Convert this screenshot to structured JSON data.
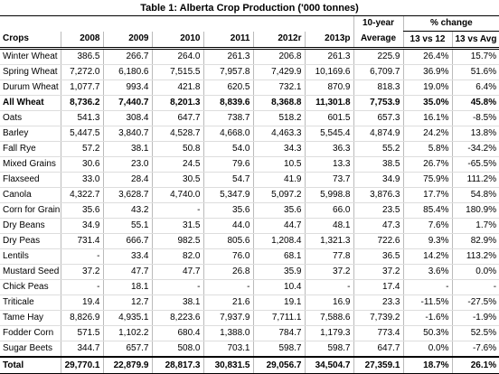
{
  "title": "Table 1:  Alberta Crop Production ('000 tonnes)",
  "header_top": {
    "average": "10-year",
    "percent_change": "% change"
  },
  "columns": [
    "Crops",
    "2008",
    "2009",
    "2010",
    "2011",
    "2012r",
    "2013p",
    "Average",
    "13 vs 12",
    "13 vs Avg"
  ],
  "rows": [
    [
      "Winter Wheat",
      "386.5",
      "266.7",
      "264.0",
      "261.3",
      "206.8",
      "261.3",
      "225.9",
      "26.4%",
      "15.7%"
    ],
    [
      "Spring Wheat",
      "7,272.0",
      "6,180.6",
      "7,515.5",
      "7,957.8",
      "7,429.9",
      "10,169.6",
      "6,709.7",
      "36.9%",
      "51.6%"
    ],
    [
      "Durum Wheat",
      "1,077.7",
      "993.4",
      "421.8",
      "620.5",
      "732.1",
      "870.9",
      "818.3",
      "19.0%",
      "6.4%"
    ],
    [
      "All Wheat",
      "8,736.2",
      "7,440.7",
      "8,201.3",
      "8,839.6",
      "8,368.8",
      "11,301.8",
      "7,753.9",
      "35.0%",
      "45.8%"
    ],
    [
      "Oats",
      "541.3",
      "308.4",
      "647.7",
      "738.7",
      "518.2",
      "601.5",
      "657.3",
      "16.1%",
      "-8.5%"
    ],
    [
      "Barley",
      "5,447.5",
      "3,840.7",
      "4,528.7",
      "4,668.0",
      "4,463.3",
      "5,545.4",
      "4,874.9",
      "24.2%",
      "13.8%"
    ],
    [
      "Fall Rye",
      "57.2",
      "38.1",
      "50.8",
      "54.0",
      "34.3",
      "36.3",
      "55.2",
      "5.8%",
      "-34.2%"
    ],
    [
      "Mixed Grains",
      "30.6",
      "23.0",
      "24.5",
      "79.6",
      "10.5",
      "13.3",
      "38.5",
      "26.7%",
      "-65.5%"
    ],
    [
      "Flaxseed",
      "33.0",
      "28.4",
      "30.5",
      "54.7",
      "41.9",
      "73.7",
      "34.9",
      "75.9%",
      "111.2%"
    ],
    [
      "Canola",
      "4,322.7",
      "3,628.7",
      "4,740.0",
      "5,347.9",
      "5,097.2",
      "5,998.8",
      "3,876.3",
      "17.7%",
      "54.8%"
    ],
    [
      "Corn for Grain",
      "35.6",
      "43.2",
      "-",
      "35.6",
      "35.6",
      "66.0",
      "23.5",
      "85.4%",
      "180.9%"
    ],
    [
      "Dry Beans",
      "34.9",
      "55.1",
      "31.5",
      "44.0",
      "44.7",
      "48.1",
      "47.3",
      "7.6%",
      "1.7%"
    ],
    [
      "Dry Peas",
      "731.4",
      "666.7",
      "982.5",
      "805.6",
      "1,208.4",
      "1,321.3",
      "722.6",
      "9.3%",
      "82.9%"
    ],
    [
      "Lentils",
      "-",
      "33.4",
      "82.0",
      "76.0",
      "68.1",
      "77.8",
      "36.5",
      "14.2%",
      "113.2%"
    ],
    [
      "Mustard Seed",
      "37.2",
      "47.7",
      "47.7",
      "26.8",
      "35.9",
      "37.2",
      "37.2",
      "3.6%",
      "0.0%"
    ],
    [
      "Chick Peas",
      "-",
      "18.1",
      "-",
      "-",
      "10.4",
      "-",
      "17.4",
      "-",
      "-"
    ],
    [
      "Triticale",
      "19.4",
      "12.7",
      "38.1",
      "21.6",
      "19.1",
      "16.9",
      "23.3",
      "-11.5%",
      "-27.5%"
    ],
    [
      "Tame Hay",
      "8,826.9",
      "4,935.1",
      "8,223.6",
      "7,937.9",
      "7,711.1",
      "7,588.6",
      "7,739.2",
      "-1.6%",
      "-1.9%"
    ],
    [
      "Fodder Corn",
      "571.5",
      "1,102.2",
      "680.4",
      "1,388.0",
      "784.7",
      "1,179.3",
      "773.4",
      "50.3%",
      "52.5%"
    ],
    [
      "Sugar Beets",
      "344.7",
      "657.7",
      "508.0",
      "703.1",
      "598.7",
      "598.7",
      "647.7",
      "0.0%",
      "-7.6%"
    ],
    [
      "Total",
      "29,770.1",
      "22,879.9",
      "28,817.3",
      "30,831.5",
      "29,056.7",
      "34,504.7",
      "27,359.1",
      "18.7%",
      "26.1%"
    ]
  ]
}
